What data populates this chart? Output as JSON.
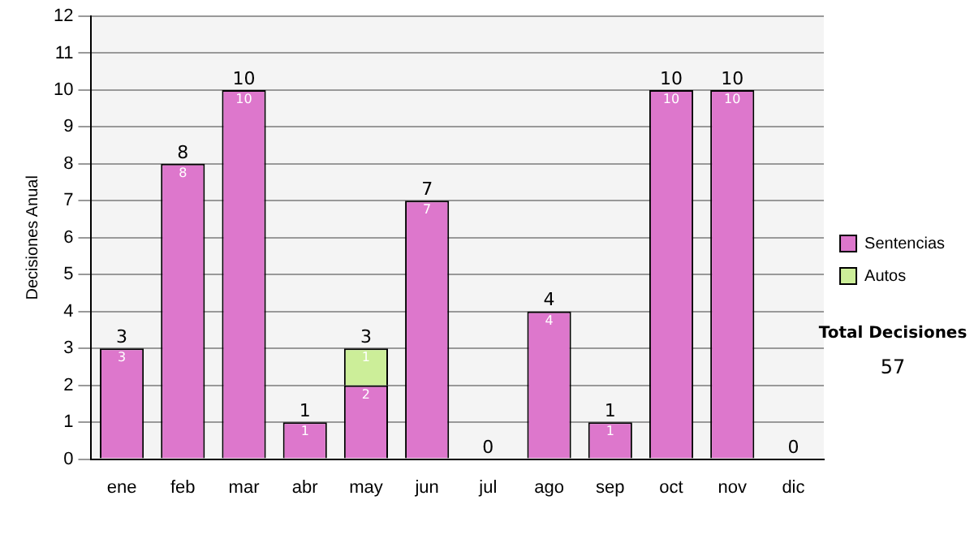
{
  "chart_data": {
    "type": "bar",
    "stacked": true,
    "ylabel": "Decisiones Anual",
    "categories": [
      "ene",
      "feb",
      "mar",
      "abr",
      "may",
      "jun",
      "jul",
      "ago",
      "sep",
      "oct",
      "nov",
      "dic"
    ],
    "series": [
      {
        "name": "Sentencias",
        "color": "#dd77cc",
        "values": [
          3,
          8,
          10,
          1,
          2,
          7,
          0,
          4,
          1,
          10,
          10,
          0
        ],
        "value_labels": [
          "3",
          "8",
          "10",
          "1",
          "2",
          "7",
          null,
          "4",
          "1",
          "10",
          "10",
          null
        ]
      },
      {
        "name": "Autos",
        "color": "#ccee99",
        "values": [
          0,
          0,
          0,
          0,
          1,
          0,
          0,
          0,
          0,
          0,
          0,
          0
        ],
        "value_labels": [
          null,
          null,
          null,
          null,
          "1",
          null,
          null,
          null,
          null,
          null,
          null,
          null
        ]
      }
    ],
    "totals": [
      "3",
      "8",
      "10",
      "1",
      "3",
      "7",
      "0",
      "4",
      "1",
      "10",
      "10",
      "0"
    ],
    "ylim": [
      0,
      12
    ],
    "yticks": [
      0,
      1,
      2,
      3,
      4,
      5,
      6,
      7,
      8,
      9,
      10,
      11,
      12
    ],
    "grid": "y",
    "legend": "right",
    "annotations": [
      "Total Decisiones",
      "57"
    ]
  }
}
